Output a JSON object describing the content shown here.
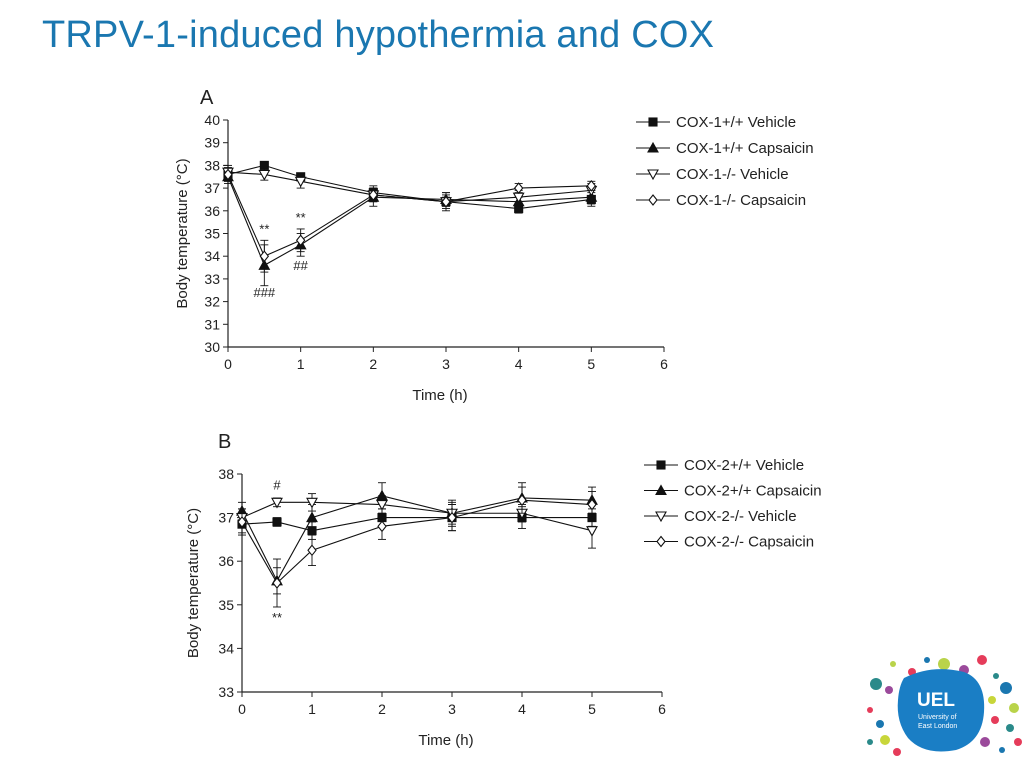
{
  "slide": {
    "title": "TRPV-1-induced hypothermia and COX"
  },
  "logo": {
    "name": "UEL",
    "line1": "University of",
    "line2": "East London"
  },
  "chart_data": [
    {
      "type": "line",
      "panel": "A",
      "xlabel": "Time (h)",
      "ylabel": "Body temperature (°C)",
      "xlim": [
        0,
        6
      ],
      "ylim": [
        30,
        40
      ],
      "xticks": [
        0,
        1,
        2,
        3,
        4,
        5,
        6
      ],
      "yticks": [
        30,
        31,
        32,
        33,
        34,
        35,
        36,
        37,
        38,
        39,
        40
      ],
      "legend_position": "right",
      "series": [
        {
          "name": "COX-1+/+ Vehicle",
          "marker": "square",
          "fill": "filled",
          "x": [
            0,
            0.5,
            1,
            2,
            3,
            4,
            5
          ],
          "y": [
            37.6,
            38.0,
            37.5,
            36.8,
            36.4,
            36.1,
            36.5
          ],
          "err": [
            0.3,
            0.15,
            0.15,
            0.3,
            0.2,
            0.2,
            0.3
          ]
        },
        {
          "name": "COX-1+/+ Capsaicin",
          "marker": "triangle-up",
          "fill": "filled",
          "x": [
            0,
            0.5,
            1,
            2,
            3,
            4,
            5
          ],
          "y": [
            37.5,
            33.6,
            34.5,
            36.6,
            36.5,
            36.4,
            36.6
          ],
          "err": [
            0.3,
            0.9,
            0.5,
            0.4,
            0.3,
            0.2,
            0.3
          ]
        },
        {
          "name": "COX-1-/- Vehicle",
          "marker": "triangle-down",
          "fill": "open",
          "x": [
            0,
            0.5,
            1,
            2,
            3,
            4,
            5
          ],
          "y": [
            37.7,
            37.6,
            37.3,
            36.7,
            36.4,
            36.6,
            36.9
          ],
          "err": [
            0.3,
            0.25,
            0.3,
            0.3,
            0.3,
            0.3,
            0.3
          ]
        },
        {
          "name": "COX-1-/- Capsaicin",
          "marker": "diamond",
          "fill": "open",
          "x": [
            0,
            0.5,
            1,
            2,
            3,
            4,
            5
          ],
          "y": [
            37.6,
            34.0,
            34.7,
            36.7,
            36.4,
            37.0,
            37.1
          ],
          "err": [
            0.3,
            0.7,
            0.5,
            0.3,
            0.4,
            0.2,
            0.2
          ]
        }
      ],
      "annotations": [
        {
          "text": "**",
          "x": 0.5,
          "y": 35.0
        },
        {
          "text": "**",
          "x": 1.0,
          "y": 35.5
        },
        {
          "text": "###",
          "x": 0.5,
          "y": 32.2
        },
        {
          "text": "##",
          "x": 1.0,
          "y": 33.4
        }
      ]
    },
    {
      "type": "line",
      "panel": "B",
      "xlabel": "Time (h)",
      "ylabel": "Body temperature (°C)",
      "xlim": [
        0,
        6
      ],
      "ylim": [
        33,
        38
      ],
      "xticks": [
        0,
        1,
        2,
        3,
        4,
        5,
        6
      ],
      "yticks": [
        33,
        34,
        35,
        36,
        37,
        38
      ],
      "legend_position": "right",
      "series": [
        {
          "name": "COX-2+/+ Vehicle",
          "marker": "square",
          "fill": "filled",
          "x": [
            0,
            0.5,
            1,
            2,
            3,
            4,
            5
          ],
          "y": [
            36.85,
            36.9,
            36.7,
            37.0,
            37.0,
            37.0,
            37.0
          ],
          "err": [
            0.2,
            0.1,
            0.2,
            0.2,
            0.3,
            0.25,
            0.2
          ]
        },
        {
          "name": "COX-2+/+ Capsaicin",
          "marker": "triangle-up",
          "fill": "filled",
          "x": [
            0,
            0.5,
            1,
            2,
            3,
            4,
            5
          ],
          "y": [
            37.15,
            35.55,
            37.0,
            37.5,
            37.1,
            37.45,
            37.4
          ],
          "err": [
            0.2,
            0.3,
            0.3,
            0.3,
            0.3,
            0.35,
            0.3
          ]
        },
        {
          "name": "COX-2-/- Vehicle",
          "marker": "triangle-down",
          "fill": "open",
          "x": [
            0,
            0.5,
            1,
            2,
            3,
            4,
            5
          ],
          "y": [
            37.0,
            37.35,
            37.35,
            37.3,
            37.1,
            37.1,
            36.7
          ],
          "err": [
            0.2,
            0.1,
            0.2,
            0.2,
            0.25,
            0.2,
            0.4
          ]
        },
        {
          "name": "COX-2-/- Capsaicin",
          "marker": "diamond",
          "fill": "open",
          "x": [
            0,
            0.5,
            1,
            2,
            3,
            4,
            5
          ],
          "y": [
            36.9,
            35.5,
            36.25,
            36.8,
            37.0,
            37.4,
            37.3
          ],
          "err": [
            0.3,
            0.55,
            0.35,
            0.3,
            0.3,
            0.3,
            0.3
          ]
        }
      ],
      "annotations": [
        {
          "text": "#",
          "x": 0.5,
          "y": 37.65
        },
        {
          "text": "**",
          "x": 0.5,
          "y": 34.6
        }
      ]
    }
  ]
}
